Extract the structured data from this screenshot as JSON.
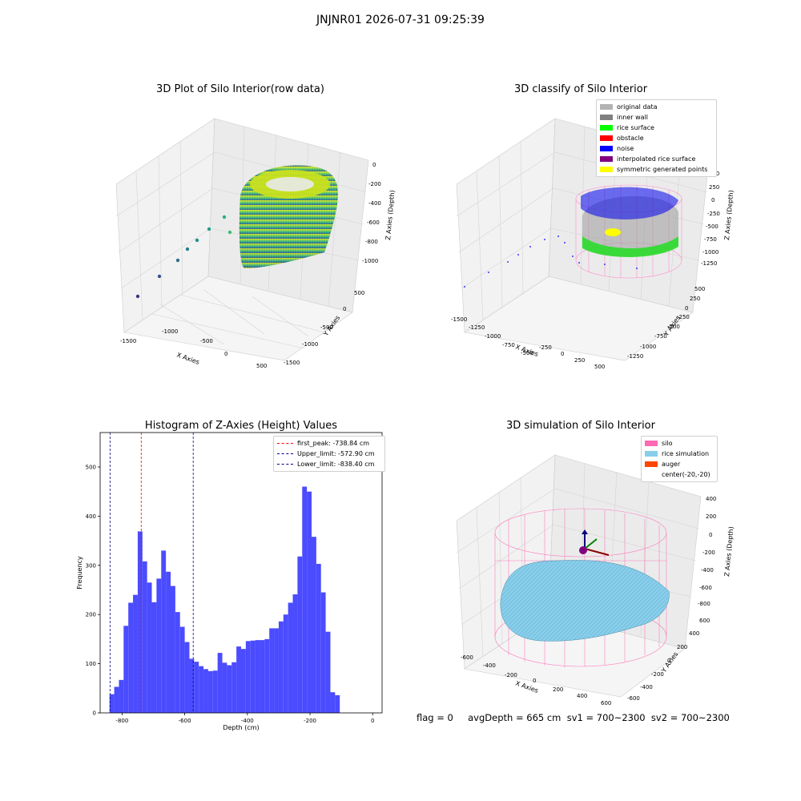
{
  "suptitle": "JNJNR01 2026-07-31 09:25:39",
  "footer_text": "flag = 0     avgDepth = 665 cm  sv1 = 700~2300  sv2 = 700~2300",
  "plot1": {
    "title": "3D Plot of Silo Interior(row data)",
    "xlabel": "X Axies",
    "ylabel": "Y Axies",
    "zlabel": "Z Axies (Depth)",
    "xticks": [
      "-1500",
      "-1000",
      "-500",
      "0",
      "500"
    ],
    "yticks": [
      "500",
      "0",
      "-500",
      "-1000",
      "-1500"
    ],
    "zticks": [
      "0",
      "-200",
      "-400",
      "-600",
      "-800",
      "-1000"
    ],
    "colormap": "viridis"
  },
  "plot2": {
    "title": "3D classify of Silo Interior",
    "xlabel": "X Axies",
    "ylabel": "Y Axies",
    "zlabel": "Z Axies (Depth)",
    "xticks": [
      "-1500",
      "-1250",
      "-1000",
      "-750",
      "-500",
      "-250",
      "0",
      "250",
      "500"
    ],
    "yticks": [
      "500",
      "250",
      "0",
      "-250",
      "-500",
      "-750",
      "-1000",
      "-1250"
    ],
    "zticks": [
      "500",
      "250",
      "0",
      "-250",
      "-500",
      "-750",
      "-1000",
      "-1250"
    ],
    "legend": [
      {
        "label": "original data",
        "color": "#b3b3b3"
      },
      {
        "label": "inner wall",
        "color": "#808080"
      },
      {
        "label": "rice surface",
        "color": "#00ff00"
      },
      {
        "label": "obstacle",
        "color": "#ff0000"
      },
      {
        "label": "noise",
        "color": "#0000ff"
      },
      {
        "label": "interpolated rice surface",
        "color": "#800080"
      },
      {
        "label": "symmetric generated points",
        "color": "#ffff00"
      }
    ]
  },
  "plot3": {
    "title": "Histogram of Z-Axies (Height) Values",
    "xlabel": "Depth (cm)",
    "ylabel": "Frequency",
    "legend": [
      {
        "label": "first_peak: -738.84 cm",
        "color": "#ff0000"
      },
      {
        "label": "Upper_limit: -572.90 cm",
        "color": "#00008b"
      },
      {
        "label": "Lower_limit: -838.40 cm",
        "color": "#00008b"
      }
    ]
  },
  "plot4": {
    "title": "3D simulation of Silo Interior",
    "xlabel": "X Axies",
    "ylabel": "Y Axies",
    "zlabel": "Z Axies (Depth)",
    "xticks": [
      "-600",
      "-400",
      "-200",
      "0",
      "200",
      "400",
      "600"
    ],
    "yticks": [
      "600",
      "400",
      "200",
      "0",
      "-200",
      "-400",
      "-600"
    ],
    "zticks": [
      "400",
      "200",
      "0",
      "-200",
      "-400",
      "-600",
      "-800"
    ],
    "legend": [
      {
        "label": "silo",
        "color": "#ff69b4"
      },
      {
        "label": "rice simulation",
        "color": "#87ceeb"
      },
      {
        "label": "auger",
        "color": "#ff4500"
      },
      {
        "label": "center(-20,-20)",
        "color": "none"
      }
    ]
  },
  "chart_data": [
    {
      "type": "scatter",
      "title": "3D Plot of Silo Interior(row data)",
      "xlabel": "X Axies",
      "ylabel": "Y Axies",
      "zlabel": "Z Axies (Depth)",
      "xlim": [
        -1500,
        500
      ],
      "ylim": [
        -1500,
        500
      ],
      "zlim": [
        -1000,
        0
      ]
    },
    {
      "type": "scatter",
      "title": "3D classify of Silo Interior",
      "xlabel": "X Axies",
      "ylabel": "Y Axies",
      "zlabel": "Z Axies (Depth)",
      "xlim": [
        -1500,
        500
      ],
      "ylim": [
        -1250,
        500
      ],
      "zlim": [
        -1250,
        500
      ],
      "series": [
        {
          "name": "original data"
        },
        {
          "name": "inner wall"
        },
        {
          "name": "rice surface"
        },
        {
          "name": "obstacle"
        },
        {
          "name": "noise"
        },
        {
          "name": "interpolated rice surface"
        },
        {
          "name": "symmetric generated points"
        }
      ]
    },
    {
      "type": "bar",
      "title": "Histogram of Z-Axies (Height) Values",
      "xlabel": "Depth (cm)",
      "ylabel": "Frequency",
      "xlim": [
        -870,
        30
      ],
      "ylim": [
        0,
        570
      ],
      "xticks": [
        -800,
        -600,
        -400,
        -200,
        0
      ],
      "yticks": [
        0,
        100,
        200,
        300,
        400,
        500
      ],
      "bin_start": -840,
      "bin_width": 15,
      "values": [
        38,
        53,
        67,
        177,
        224,
        240,
        369,
        308,
        265,
        225,
        273,
        330,
        287,
        258,
        205,
        175,
        144,
        110,
        104,
        95,
        89,
        85,
        86,
        122,
        102,
        97,
        103,
        135,
        130,
        146,
        147,
        148,
        148,
        150,
        172,
        172,
        186,
        200,
        224,
        241,
        318,
        460,
        450,
        358,
        303,
        245,
        165,
        42,
        36
      ],
      "vlines": [
        {
          "name": "first_peak: -738.84 cm",
          "x": -738.84,
          "color": "#ff0000"
        },
        {
          "name": "Upper_limit: -572.90 cm",
          "x": -572.9,
          "color": "#00008b"
        },
        {
          "name": "Lower_limit: -838.40 cm",
          "x": -838.4,
          "color": "#00008b"
        }
      ]
    },
    {
      "type": "scatter",
      "title": "3D simulation of Silo Interior",
      "xlabel": "X Axies",
      "ylabel": "Y Axies",
      "zlabel": "Z Axies (Depth)",
      "xlim": [
        -600,
        600
      ],
      "ylim": [
        -600,
        600
      ],
      "zlim": [
        -800,
        400
      ],
      "series": [
        {
          "name": "silo"
        },
        {
          "name": "rice simulation"
        },
        {
          "name": "auger"
        },
        {
          "name": "center(-20,-20)"
        }
      ]
    }
  ]
}
